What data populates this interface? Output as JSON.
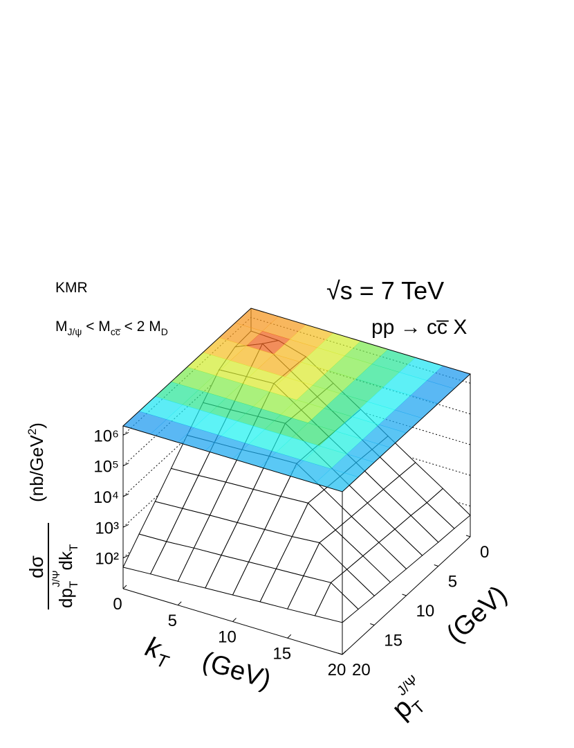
{
  "chart_data": {
    "type": "surface",
    "annotations": {
      "model": "KMR",
      "cut": [
        "M",
        "J/ψ",
        " < M",
        "cc̅",
        " < 2 M",
        "D"
      ],
      "energy": "√s = 7 TeV",
      "process": "pp → cc̅ X"
    },
    "x_label": {
      "main": "k",
      "sub": "T",
      "unit": "(GeV)"
    },
    "y_label": {
      "main": "p",
      "sub": "T",
      "sup": "J/Ψ",
      "unit": "(GeV)"
    },
    "z_label": {
      "numerator": "dσ",
      "denominator": [
        "dp",
        "T",
        "J/Ψ",
        "dk",
        "T"
      ],
      "unit": [
        "(nb/GeV",
        "2",
        ")"
      ]
    },
    "x": [
      0,
      2.5,
      5,
      7.5,
      10,
      12.5,
      15,
      17.5,
      20
    ],
    "y": [
      0,
      2.5,
      5,
      7.5,
      10,
      12.5,
      15,
      17.5,
      20
    ],
    "z": [
      [
        360000,
        330000,
        180000,
        46000,
        12000,
        3000,
        760,
        200,
        50
      ],
      [
        330000,
        780000,
        200000,
        50000,
        13000,
        3300,
        840,
        210,
        56
      ],
      [
        180000,
        200000,
        220000,
        56000,
        14000,
        3700,
        930,
        240,
        60
      ],
      [
        46000,
        50000,
        56000,
        62000,
        16000,
        4000,
        1000,
        260,
        67
      ],
      [
        12000,
        13000,
        14000,
        16000,
        17000,
        4400,
        1100,
        290,
        74
      ],
      [
        3000,
        3300,
        3700,
        4000,
        4400,
        4900,
        1200,
        320,
        82
      ],
      [
        760,
        840,
        930,
        1000,
        1100,
        1200,
        1400,
        350,
        89
      ],
      [
        200,
        210,
        240,
        260,
        290,
        320,
        350,
        390,
        99
      ],
      [
        50,
        56,
        60,
        67,
        74,
        82,
        89,
        99,
        110
      ]
    ],
    "xlim": [
      0,
      20
    ],
    "ylim": [
      0,
      20
    ],
    "zlim": [
      10,
      2000000
    ],
    "xticks": [
      0,
      5,
      10,
      15,
      20
    ],
    "yticks": [
      0,
      5,
      10,
      15,
      20
    ],
    "zticks": [
      {
        "value": 100,
        "label": "10²"
      },
      {
        "value": 1000,
        "label": "10³"
      },
      {
        "value": 10000,
        "label": "10⁴"
      },
      {
        "value": 100000,
        "label": "10⁵"
      },
      {
        "value": 1000000,
        "label": "10⁶"
      }
    ],
    "z_log": true,
    "grid": true,
    "colormap": [
      "#4b10a0",
      "#2a3fd6",
      "#1a9cf0",
      "#1ef2f2",
      "#2ee07a",
      "#a8f03a",
      "#f5e62a",
      "#f58a1e",
      "#e0201a"
    ]
  }
}
